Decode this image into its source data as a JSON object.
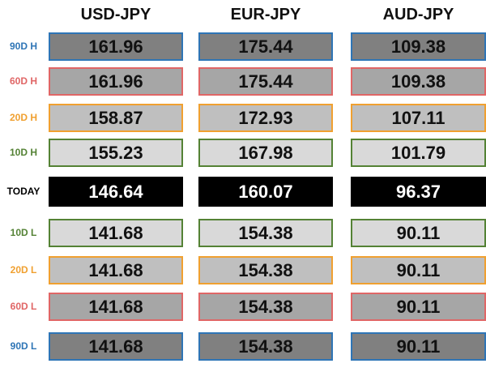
{
  "table": {
    "columns": [
      "USD-JPY",
      "EUR-JPY",
      "AUD-JPY"
    ],
    "rows": [
      {
        "label": "90D H",
        "values": [
          161.96,
          175.44,
          109.38
        ]
      },
      {
        "label": "60D H",
        "values": [
          161.96,
          175.44,
          109.38
        ]
      },
      {
        "label": "20D H",
        "values": [
          158.87,
          172.93,
          107.11
        ]
      },
      {
        "label": "10D H",
        "values": [
          155.23,
          167.98,
          101.79
        ]
      },
      {
        "label": "TODAY",
        "values": [
          146.64,
          160.07,
          96.37
        ]
      },
      {
        "label": "10D L",
        "values": [
          141.68,
          154.38,
          90.11
        ]
      },
      {
        "label": "20D L",
        "values": [
          141.68,
          154.38,
          90.11
        ]
      },
      {
        "label": "60D L",
        "values": [
          141.68,
          154.38,
          90.11
        ]
      },
      {
        "label": "90D L",
        "values": [
          141.68,
          154.38,
          90.11
        ]
      }
    ]
  }
}
